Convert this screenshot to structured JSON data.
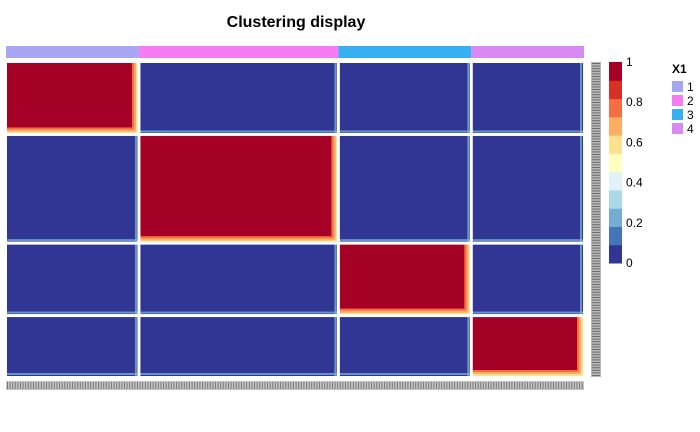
{
  "chart_data": {
    "type": "heatmap",
    "title": "Clustering display",
    "value_range": [
      0,
      1
    ],
    "colorbar": {
      "ticks": [
        0,
        0.2,
        0.4,
        0.6,
        0.8,
        1
      ],
      "tick_labels": [
        "0",
        "0.2",
        "0.4",
        "0.6",
        "0.8",
        "1"
      ],
      "colors": [
        "#313695",
        "#4575B4",
        "#74ADD1",
        "#ABD9E9",
        "#E0F3F8",
        "#FFFFBF",
        "#FEE090",
        "#FDAE61",
        "#F46D43",
        "#D73027",
        "#A50026"
      ]
    },
    "annotation": {
      "name": "X1",
      "legend_position": "right",
      "groups": [
        {
          "label": "1",
          "color": "#A6A6F2",
          "size": 0.23
        },
        {
          "label": "2",
          "color": "#F57CF2",
          "size": 0.345
        },
        {
          "label": "3",
          "color": "#36B0F2",
          "size": 0.23
        },
        {
          "label": "4",
          "color": "#D98AF2",
          "size": 0.195
        }
      ]
    },
    "matrix": [
      [
        1,
        0,
        0,
        0
      ],
      [
        0,
        1,
        0,
        0
      ],
      [
        0,
        0,
        1,
        0
      ],
      [
        0,
        0,
        0,
        1
      ]
    ]
  }
}
